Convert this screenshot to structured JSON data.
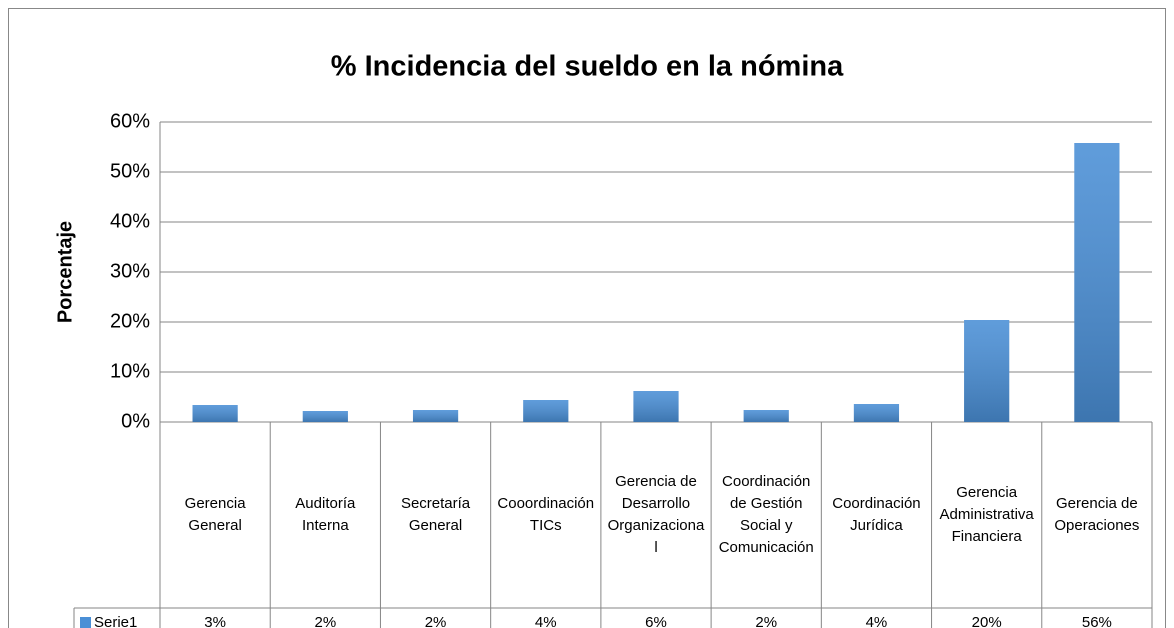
{
  "chart_data": {
    "type": "bar",
    "title": "% Incidencia del sueldo en la nómina",
    "y_label": "Porcentaje",
    "categories": [
      "Gerencia General",
      "Auditoría Interna",
      "Secretaría General",
      "Cooordinación TICs",
      "Gerencia de Desarrollo Organizacional",
      "Coordinación de Gestión Social y Comunicación",
      "Coordinación Jurídica",
      "Gerencia Administrativa Financiera",
      "Gerencia de Operaciones"
    ],
    "series": [
      {
        "name": "Serie1",
        "color": "#4a8fd6",
        "values": [
          3.4,
          2.2,
          2.4,
          4.4,
          6.2,
          2.4,
          3.6,
          20.4,
          55.8
        ],
        "value_labels": [
          "3%",
          "2%",
          "2%",
          "4%",
          "6%",
          "2%",
          "4%",
          "20%",
          "56%"
        ]
      }
    ],
    "ylim": [
      0,
      60
    ],
    "yticks": [
      {
        "value": 0,
        "label": "0%"
      },
      {
        "value": 10,
        "label": "10%"
      },
      {
        "value": 20,
        "label": "20%"
      },
      {
        "value": 30,
        "label": "30%"
      },
      {
        "value": 40,
        "label": "40%"
      },
      {
        "value": 50,
        "label": "50%"
      },
      {
        "value": 60,
        "label": "60%"
      }
    ],
    "grid": true
  }
}
